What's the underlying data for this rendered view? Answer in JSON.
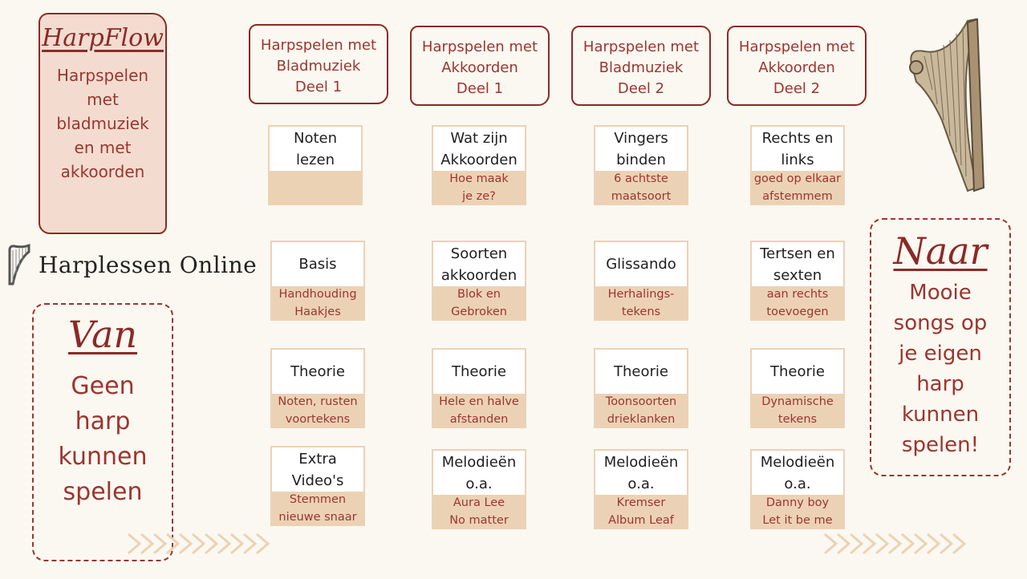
{
  "brand": {
    "logo": "HarpFlow",
    "tagline": [
      "Harpspelen",
      "met",
      "bladmuziek",
      "en met",
      "akkoorden"
    ]
  },
  "logo_text": "Harplessen Online",
  "van": {
    "title": "Van",
    "lines": [
      "Geen",
      "harp",
      "kunnen",
      "spelen"
    ]
  },
  "naar": {
    "title": "Naar",
    "lines": [
      "Mooie",
      "songs op",
      "je eigen",
      "harp",
      "kunnen",
      "spelen!"
    ]
  },
  "columns": [
    {
      "header": [
        "Harpspelen met",
        "Bladmuziek",
        "Deel 1"
      ],
      "cards": [
        {
          "title": [
            "Noten",
            "lezen"
          ],
          "sub": ""
        },
        {
          "title": [
            "Basis"
          ],
          "sub": "Handhouding\nHaakjes"
        },
        {
          "title": [
            "Theorie"
          ],
          "sub": "Noten,  rusten\nvoortekens"
        },
        {
          "title": [
            "Extra",
            "Video's"
          ],
          "sub": "Stemmen\nnieuwe snaar"
        }
      ]
    },
    {
      "header": [
        "Harpspelen met",
        "Akkoorden",
        "Deel 1"
      ],
      "cards": [
        {
          "title": [
            "Wat zijn",
            "Akkoorden"
          ],
          "sub": "Hoe maak\nje ze?"
        },
        {
          "title": [
            "Soorten",
            "akkoorden"
          ],
          "sub": "Blok en\nGebroken"
        },
        {
          "title": [
            "Theorie"
          ],
          "sub": "Hele en halve\nafstanden"
        },
        {
          "title": [
            "Melodieën",
            "o.a."
          ],
          "sub": "Aura Lee\nNo matter"
        }
      ]
    },
    {
      "header": [
        "Harpspelen met",
        "Bladmuziek",
        "Deel 2"
      ],
      "cards": [
        {
          "title": [
            "Vingers",
            "binden"
          ],
          "sub": "6 achtste\nmaatsoort"
        },
        {
          "title": [
            "Glissando"
          ],
          "sub": "Herhalings-\ntekens"
        },
        {
          "title": [
            "Theorie"
          ],
          "sub": "Toonsoorten\ndrieklanken"
        },
        {
          "title": [
            "Melodieën",
            "o.a."
          ],
          "sub": "Kremser\nAlbum Leaf"
        }
      ]
    },
    {
      "header": [
        "Harpspelen met",
        "Akkoorden",
        "Deel 2"
      ],
      "cards": [
        {
          "title": [
            "Rechts en",
            "links"
          ],
          "sub": "goed op elkaar\nafstemmem"
        },
        {
          "title": [
            "Tertsen en",
            "sexten"
          ],
          "sub": "aan rechts\ntoevoegen"
        },
        {
          "title": [
            "Theorie"
          ],
          "sub": "Dynamische\ntekens"
        },
        {
          "title": [
            "Melodieën",
            "o.a."
          ],
          "sub": "Danny boy\nLet it be me"
        }
      ]
    }
  ],
  "colors": {
    "accent": "#8a2a28",
    "card_fill": "#ecd2b5",
    "brand_fill": "#f3dccf",
    "background": "#fbf8f1"
  }
}
